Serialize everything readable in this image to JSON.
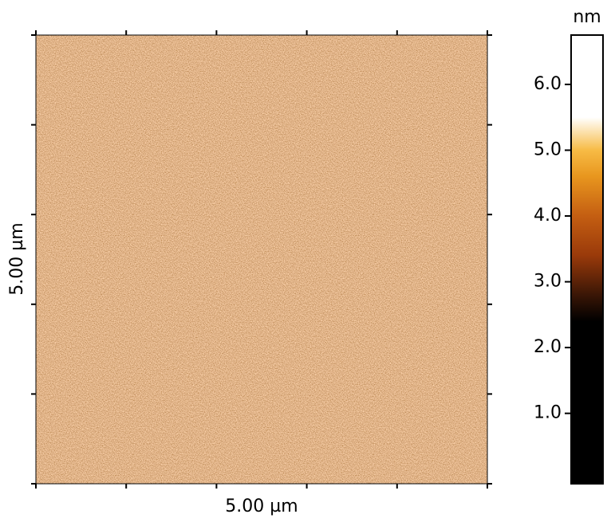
{
  "chart_data": {
    "type": "image",
    "xlabel": "5.00 µm",
    "ylabel": "5.00 µm",
    "colorbar_label": "nm",
    "xlim": [
      0,
      5
    ],
    "ylim": [
      0,
      5
    ],
    "xticks": [
      0,
      1,
      2,
      3,
      4,
      5
    ],
    "yticks": [
      0,
      1,
      2,
      3,
      4,
      5
    ],
    "clim": [
      -0.07,
      6.75
    ],
    "cticks": [
      {
        "value": 1,
        "label": "1.0"
      },
      {
        "value": 2,
        "label": "2.0"
      },
      {
        "value": 3,
        "label": "3.0"
      },
      {
        "value": 4,
        "label": "4.0"
      },
      {
        "value": 5,
        "label": "5.0"
      },
      {
        "value": 6,
        "label": "6.0"
      }
    ],
    "colormap": [
      {
        "value": -0.07,
        "color": "#000000"
      },
      {
        "value": 2.4,
        "color": "#000000"
      },
      {
        "value": 2.8,
        "color": "#3a1606"
      },
      {
        "value": 3.4,
        "color": "#9a3a0a"
      },
      {
        "value": 4.0,
        "color": "#c45e12"
      },
      {
        "value": 4.6,
        "color": "#e8961e"
      },
      {
        "value": 5.0,
        "color": "#f7bb45"
      },
      {
        "value": 5.5,
        "color": "#ffffff"
      },
      {
        "value": 6.75,
        "color": "#ffffff"
      }
    ]
  }
}
